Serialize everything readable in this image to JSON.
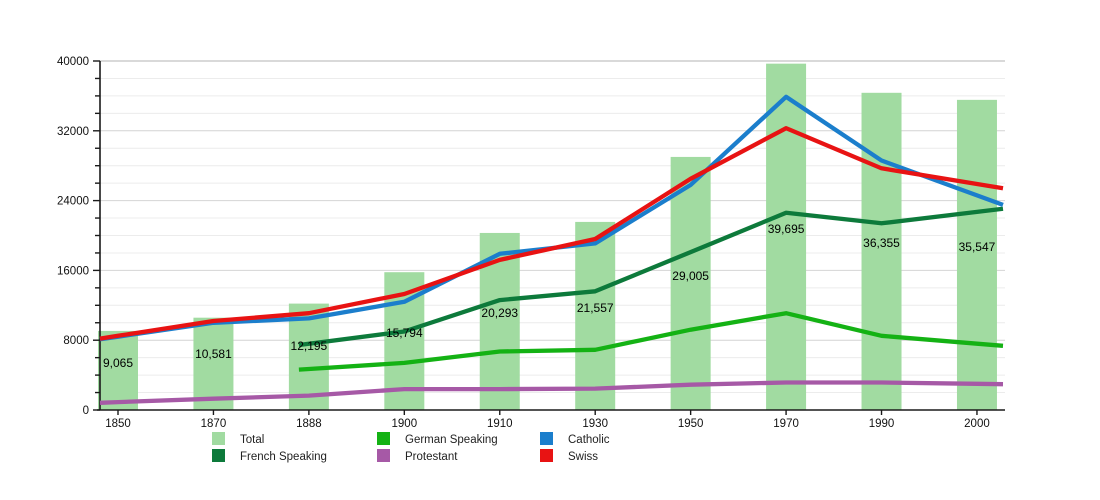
{
  "chart_data": {
    "type": "bar",
    "title": "",
    "xlabel": "",
    "ylabel": "",
    "grid": true,
    "legend_position": "bottom",
    "ylim": [
      0,
      40000
    ],
    "ytick_labels": [
      "0",
      "8000",
      "16000",
      "24000",
      "32000",
      "40000"
    ],
    "minor_tick_step": 2000,
    "major_tick_step": 8000,
    "categories": [
      "1850",
      "1870",
      "1888",
      "1900",
      "1910",
      "1930",
      "1950",
      "1970",
      "1990",
      "2000"
    ],
    "bars": {
      "name": "Total",
      "color": "#a1dba1",
      "values": [
        9065,
        10581,
        12195,
        15794,
        20293,
        21557,
        29005,
        39695,
        36355,
        35547
      ],
      "labels": [
        "9,065",
        "10,581",
        "12,195",
        "15,794",
        "20,293",
        "21,557",
        "29,005",
        "39,695",
        "36,355",
        "35,547"
      ]
    },
    "series": [
      {
        "name": "Protestant",
        "color": "#a659a6",
        "values": [
          900,
          1300,
          1650,
          2400,
          2400,
          2450,
          2900,
          3150,
          3150,
          3000
        ]
      },
      {
        "name": "German Speaking",
        "color": "#14b214",
        "values": [
          null,
          null,
          4700,
          5400,
          6700,
          6900,
          9200,
          11100,
          8500,
          7600
        ]
      },
      {
        "name": "French Speaking",
        "color": "#0d7a3b",
        "values": [
          null,
          null,
          7600,
          9000,
          12600,
          13600,
          18100,
          22600,
          21400,
          22700
        ]
      },
      {
        "name": "Catholic",
        "color": "#1b7ecc",
        "values": [
          8400,
          10000,
          10500,
          12400,
          17900,
          19100,
          25800,
          35900,
          28600,
          24600
        ]
      },
      {
        "name": "Swiss",
        "color": "#e81313",
        "values": [
          8500,
          10200,
          11100,
          13300,
          17200,
          19600,
          26500,
          32300,
          27700,
          25900
        ]
      }
    ],
    "legend": [
      {
        "label": "Total",
        "color": "#a1dba1"
      },
      {
        "label": "French Speaking",
        "color": "#0d7a3b"
      },
      {
        "label": "German Speaking",
        "color": "#14b214"
      },
      {
        "label": "Protestant",
        "color": "#a659a6"
      },
      {
        "label": "Catholic",
        "color": "#1b7ecc"
      },
      {
        "label": "Swiss",
        "color": "#e81313"
      }
    ],
    "colors": {
      "axis": "#1a1a1a",
      "minor_grid": "#ececec",
      "major_grid": "#d4d4d4",
      "top_grid": "#b3b3b3",
      "label_text": "#000000"
    }
  }
}
